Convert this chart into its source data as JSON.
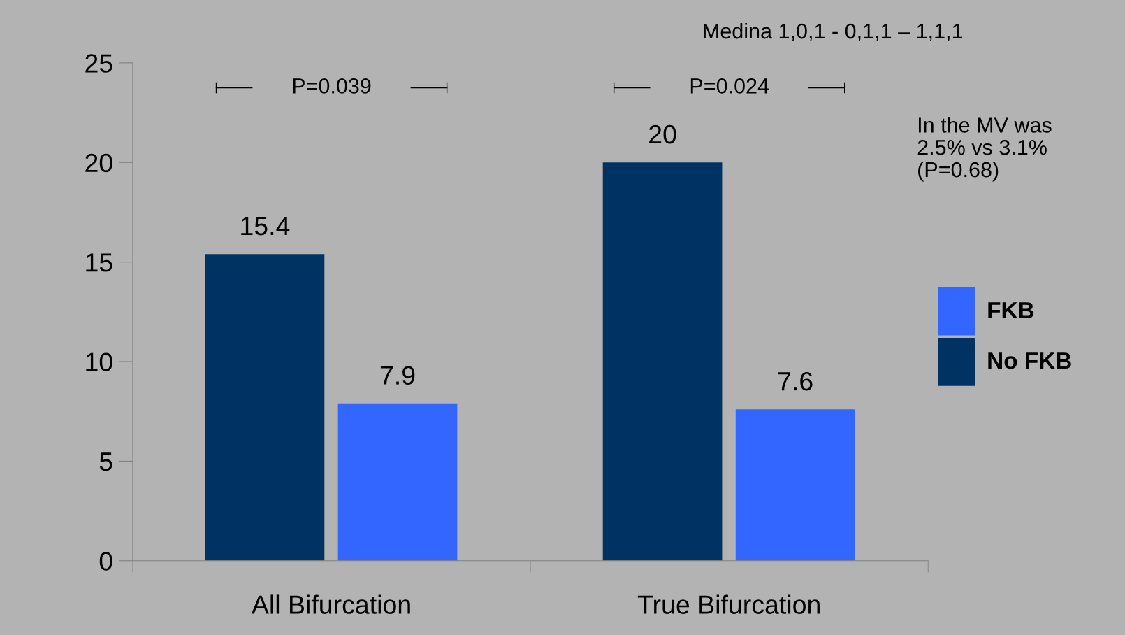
{
  "chart_data": {
    "type": "bar",
    "categories": [
      "All Bifurcation",
      "True Bifurcation"
    ],
    "series": [
      {
        "name": "No FKB",
        "color": "#003263",
        "values": [
          15.4,
          20
        ]
      },
      {
        "name": "FKB",
        "color": "#3366ff",
        "values": [
          7.9,
          7.6
        ]
      }
    ],
    "ylim": [
      0,
      25
    ],
    "yticks": [
      0,
      5,
      10,
      15,
      20,
      25
    ],
    "data_labels": true,
    "legend": "right",
    "grid": false,
    "annotations": [
      "Medina 1,0,1 - 0,1,1 – 1,1,1",
      "P=0.039",
      "P=0.024",
      "In the MV was\n2.5% vs 3.1%\n(P=0.68)"
    ]
  }
}
